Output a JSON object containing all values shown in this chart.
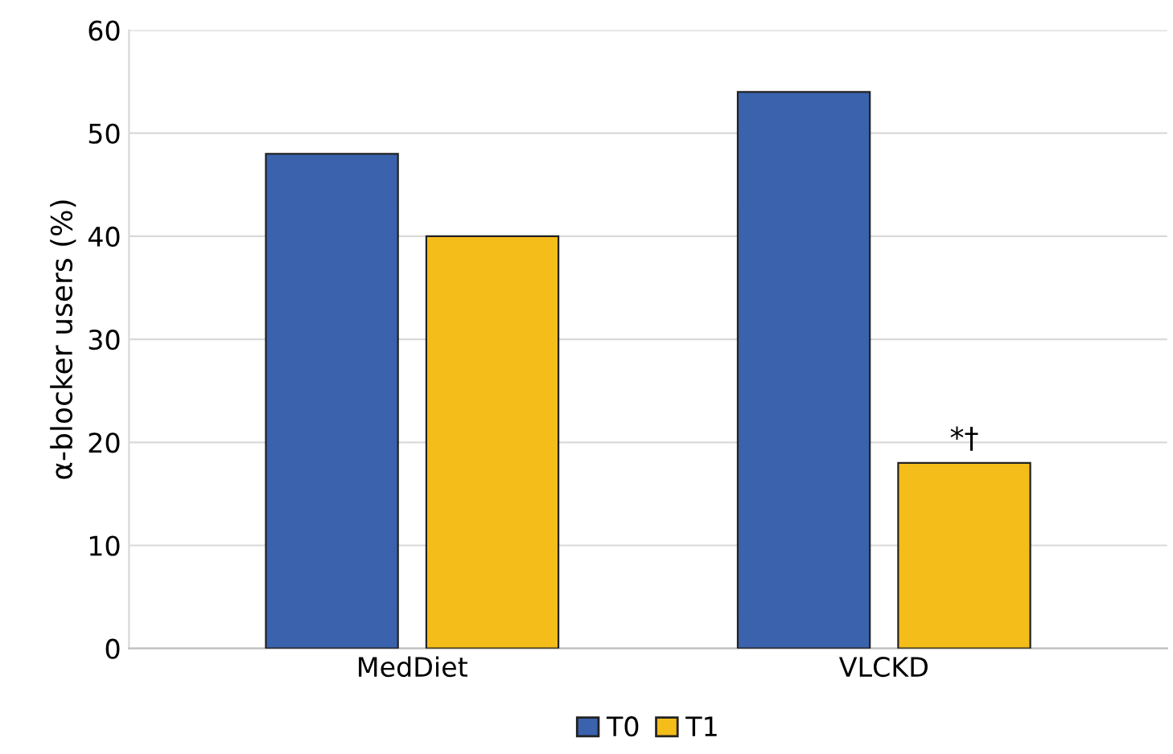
{
  "chart_data": {
    "type": "bar",
    "ylabel": "α-blocker users (%)",
    "categories": [
      "MedDiet",
      "VLCKD"
    ],
    "series": [
      {
        "name": "T0",
        "color": "#3a62ad",
        "values": [
          48,
          54
        ]
      },
      {
        "name": "T1",
        "color": "#f5bd1a",
        "values": [
          40,
          18
        ]
      }
    ],
    "ylim": [
      0,
      60
    ],
    "yticks": [
      0,
      10,
      20,
      30,
      40,
      50,
      60
    ],
    "grid": "y",
    "legend": "bottom",
    "annotations": [
      "*†"
    ]
  }
}
